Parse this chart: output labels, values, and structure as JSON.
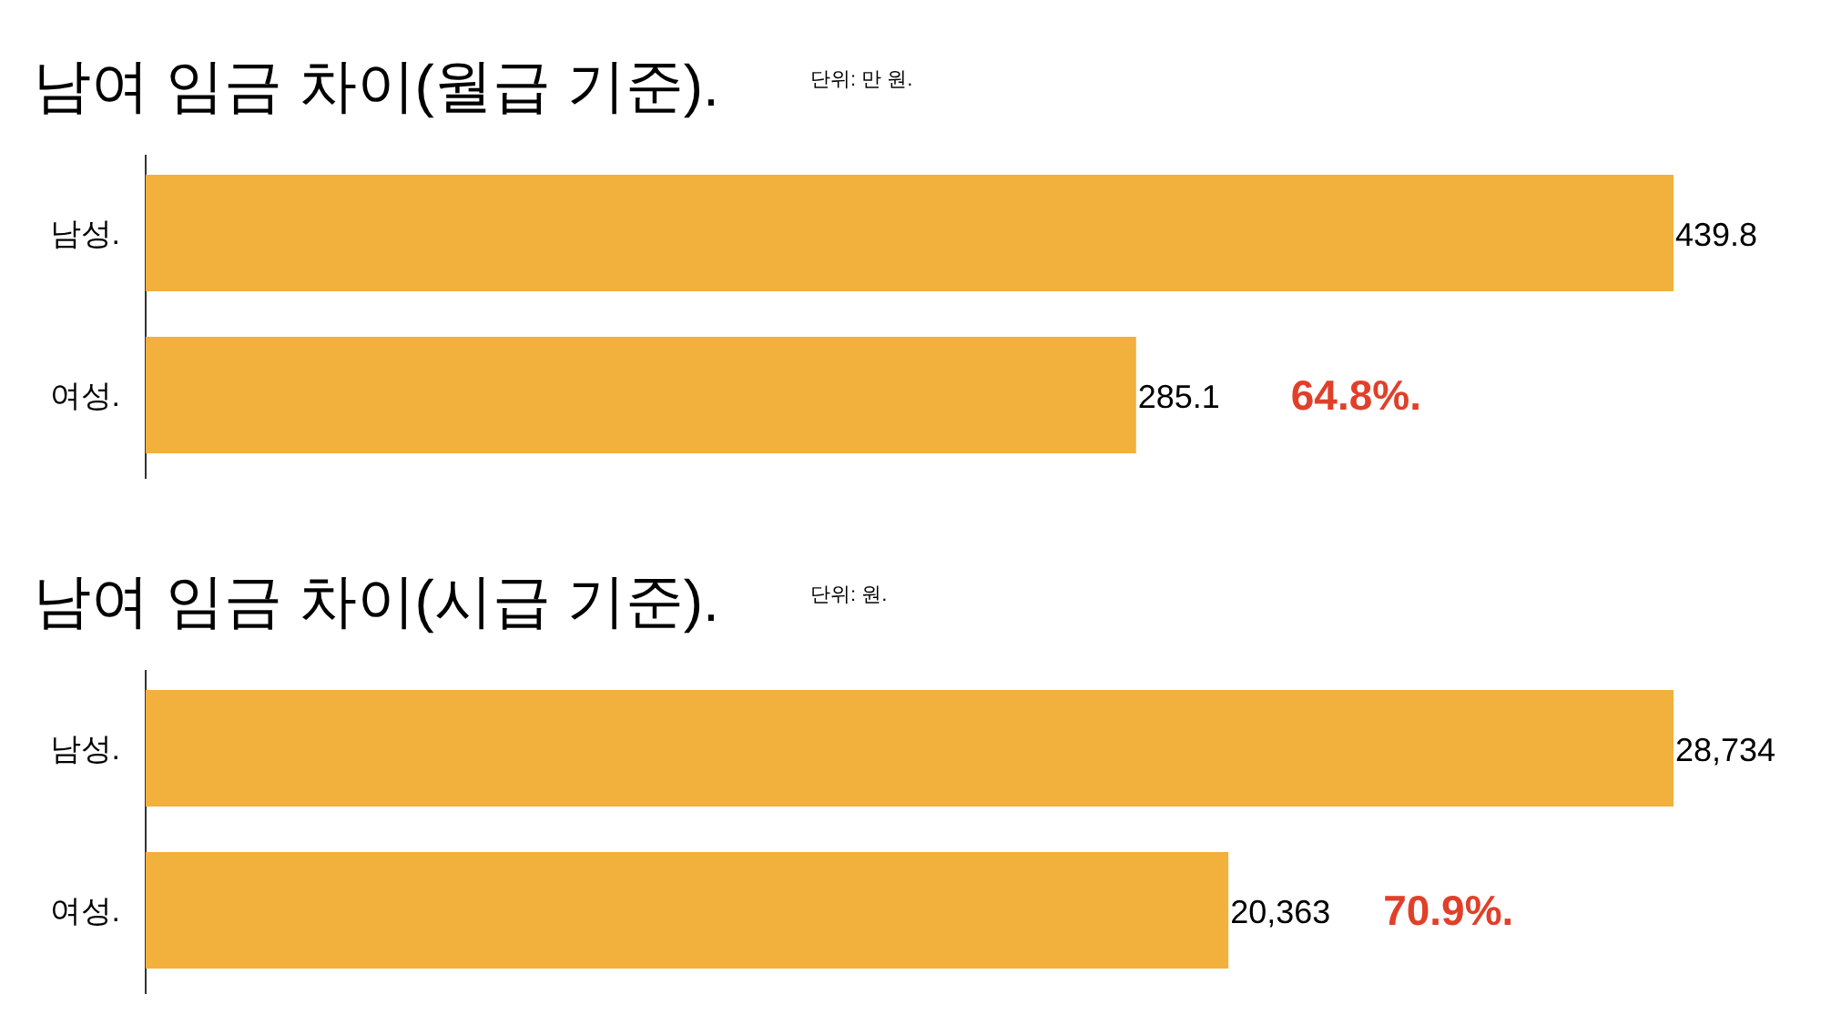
{
  "chart_data": [
    {
      "type": "bar",
      "orientation": "horizontal",
      "title": "남여 임금 차이(월급 기준).",
      "subtitle": "단위: 만 원.",
      "categories": [
        "남성.",
        "여성."
      ],
      "values": [
        439.8,
        285.1
      ],
      "color": "#f2b03c",
      "data_labels": true,
      "annotations": [
        "64.8%."
      ]
    },
    {
      "type": "bar",
      "orientation": "horizontal",
      "title": "남여 임금 차이(시급 기준).",
      "subtitle": "단위: 원.",
      "categories": [
        "남성.",
        "여성."
      ],
      "values": [
        28734,
        20363
      ],
      "value_labels": [
        "28,734",
        "20,363"
      ],
      "color": "#f2b03c",
      "annotations": [
        "70.9%."
      ]
    }
  ]
}
